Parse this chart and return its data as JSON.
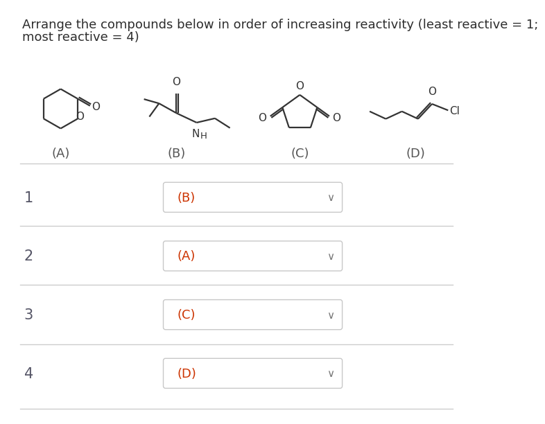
{
  "title_line1": "Arrange the compounds below in order of increasing reactivity (least reactive = 1;",
  "title_line2": "most reactive = 4)",
  "bg_color": "#ffffff",
  "text_color": "#2d2d2d",
  "label_color": "#555555",
  "dropdown_border": "#c8c8c8",
  "dropdown_text_color": "#cc3300",
  "row_labels": [
    "1",
    "2",
    "3",
    "4"
  ],
  "dropdown_values": [
    "(B)",
    "(A)",
    "(C)",
    "(D)"
  ],
  "compound_labels": [
    "(A)",
    "(B)",
    "(C)",
    "(D)"
  ],
  "divider_color": "#cccccc",
  "title_fontsize": 13.0,
  "row_label_fontsize": 15,
  "dropdown_fontsize": 13,
  "compound_label_fontsize": 13,
  "struct_line_color": "#333333",
  "struct_lw": 1.6
}
